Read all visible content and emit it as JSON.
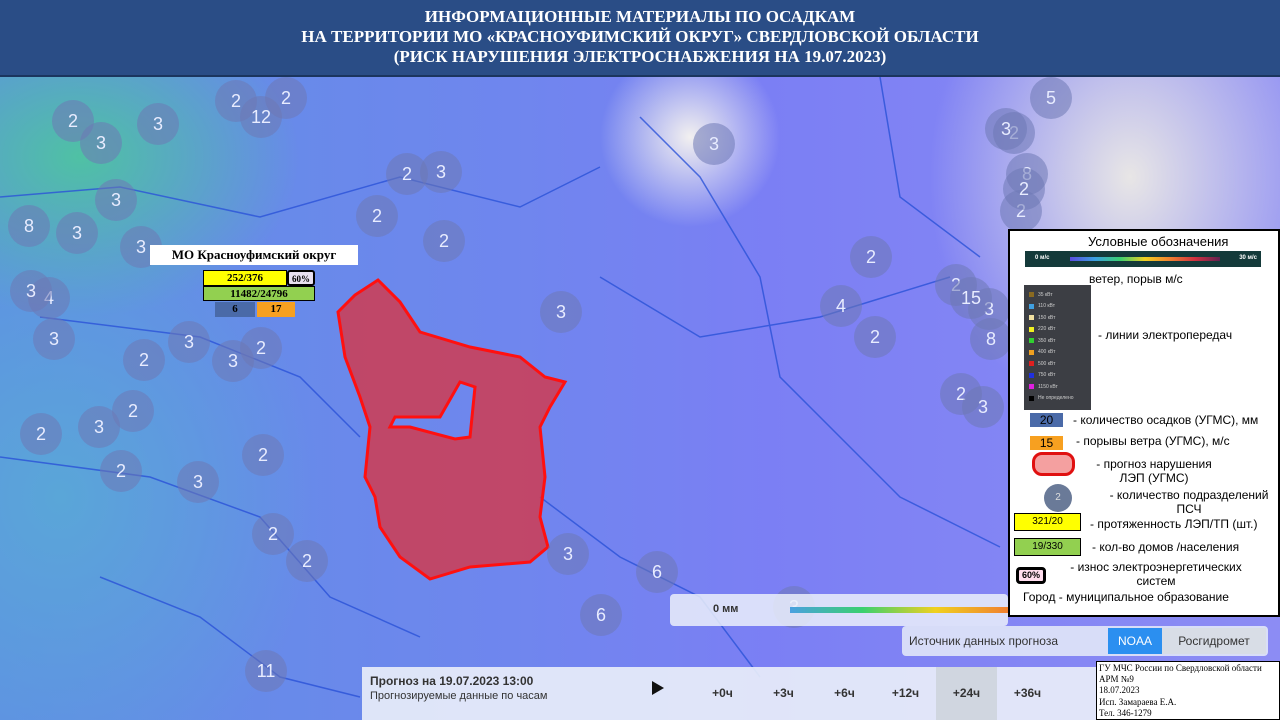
{
  "header": {
    "line1": "ИНФОРМАЦИОННЫЕ МАТЕРИАЛЫ ПО ОСАДКАМ",
    "line2": "НА ТЕРРИТОРИИ МО «КРАСНОУФИМСКИЙ ОКРУГ» СВЕРДЛОВСКОЙ ОБЛАСТИ",
    "line3": "(РИСК НАРУШЕНИЯ ЭЛЕКТРОСНАБЖЕНИЯ НА 19.07.2023)"
  },
  "municipality": {
    "name": "МО Красноуфимский округ",
    "lines_tp": "252/376",
    "wear": "60%",
    "houses_population": "11482/24796",
    "precipitation": "6",
    "wind_gusts": "17"
  },
  "clusters": [
    "2",
    "2",
    "12",
    "2",
    "3",
    "3",
    "2",
    "3",
    "3",
    "8",
    "3",
    "3",
    "2",
    "2",
    "4",
    "3",
    "3",
    "2",
    "3",
    "2",
    "2",
    "2",
    "3",
    "2",
    "3",
    "2",
    "2",
    "3",
    "6",
    "3",
    "6",
    "3",
    "4",
    "2",
    "2",
    "3",
    "3",
    "2",
    "2",
    "3",
    "3",
    "2",
    "5",
    "2",
    "3",
    "8",
    "2",
    "15",
    "8",
    "2",
    "11"
  ],
  "legend": {
    "title": "Условные обозначения",
    "wind_min": "0 м/с",
    "wind_max": "30 м/с",
    "wind_label": "ветер, порыв м/с",
    "lep_items": [
      {
        "label": "35 кВт",
        "color": "#8a6a20"
      },
      {
        "label": "110 кВт",
        "color": "#40a0e0"
      },
      {
        "label": "150 кВт",
        "color": "#f0e0a0"
      },
      {
        "label": "220 кВт",
        "color": "#f0f020"
      },
      {
        "label": "350 кВт",
        "color": "#30d030"
      },
      {
        "label": "400 кВт",
        "color": "#f0a020"
      },
      {
        "label": "500 кВт",
        "color": "#e02020"
      },
      {
        "label": "750 кВт",
        "color": "#2030e0"
      },
      {
        "label": "1150 кВт",
        "color": "#e020e0"
      },
      {
        "label": "Не определено",
        "color": "#000000"
      }
    ],
    "lep_label": "- линии электропередач",
    "prec_sample": "20",
    "prec_label": "- количество осадков (УГМС), мм",
    "gust_sample": "15",
    "gust_label": "- порывы ветра (УГМС), м/с",
    "risk_label": "- прогноз нарушения ЛЭП (УГМС)",
    "psch_sample": "2",
    "psch_label": "- количество подразделений ПСЧ",
    "lines_sample": "321/20",
    "lines_label": "- протяженность ЛЭП/ТП (шт.)",
    "houses_sample": "19/330",
    "houses_label": "- кол-во домов /населения",
    "wear_sample": "60%",
    "wear_label": "- износ электроэнергетических систем",
    "city_label": "Город - муниципальное образование"
  },
  "precip_scale": {
    "min": "0 мм"
  },
  "source": {
    "label": "Источник данных прогноза",
    "options": [
      "NOAA",
      "Росгидромет"
    ],
    "selected": "NOAA"
  },
  "forecast": {
    "title": "Прогноз на 19.07.2023 13:00",
    "subtitle": "Прогнозируемые данные по часам",
    "steps": [
      "+0ч",
      "+3ч",
      "+6ч",
      "+12ч",
      "+24ч",
      "+36ч"
    ],
    "selected": "+24ч"
  },
  "footer": {
    "line1": "ГУ МЧС России по Свердловской области",
    "line2": "АРМ №9",
    "line3": "18.07.2023",
    "line4": "Исп. Замараева Е.А.",
    "line5": "Тел. 346-1279"
  }
}
